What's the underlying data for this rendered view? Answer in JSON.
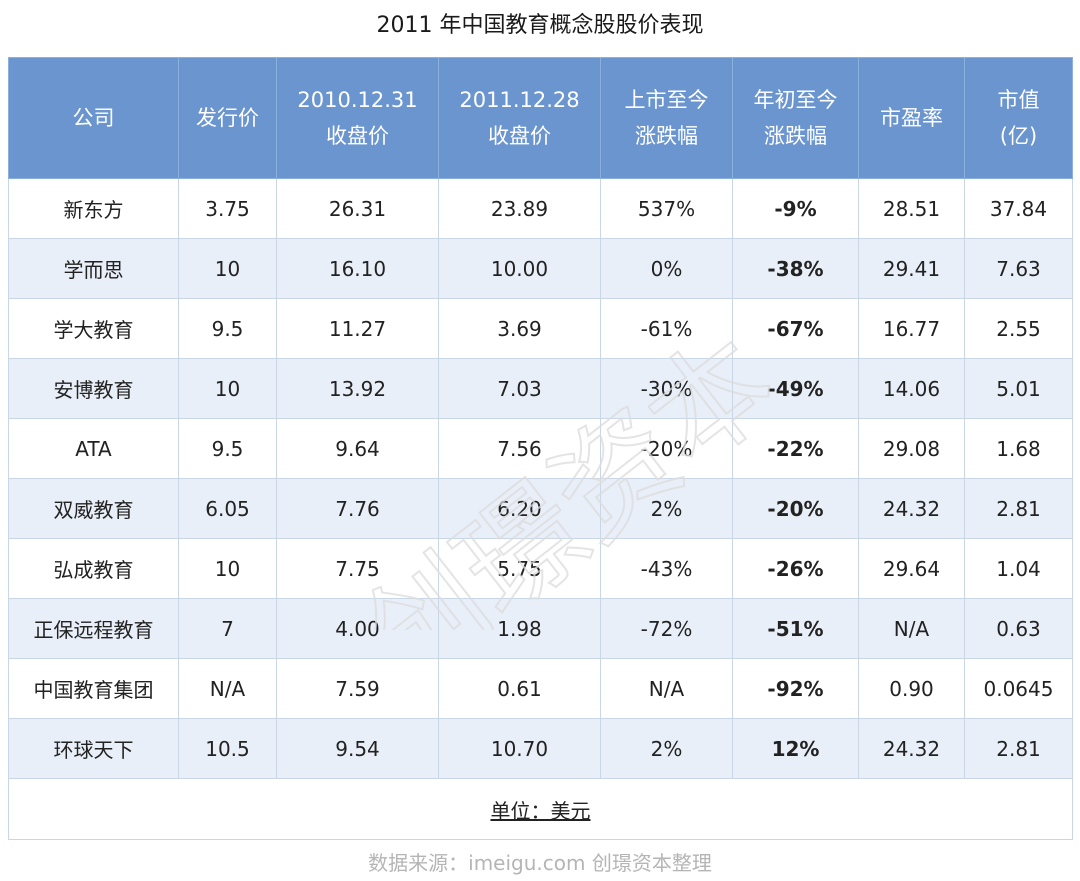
{
  "title": "2011 年中国教育概念股股价表现",
  "table": {
    "headers": [
      [
        "公司"
      ],
      [
        "发行价"
      ],
      [
        "2010.12.31",
        "收盘价"
      ],
      [
        "2011.12.28",
        "收盘价"
      ],
      [
        "上市至今",
        "涨跌幅"
      ],
      [
        "年初至今",
        "涨跌幅"
      ],
      [
        "市盈率"
      ],
      [
        "市值",
        "(亿)"
      ]
    ],
    "rows": [
      [
        "新东方",
        "3.75",
        "26.31",
        "23.89",
        "537%",
        "-9%",
        "28.51",
        "37.84"
      ],
      [
        "学而思",
        "10",
        "16.10",
        "10.00",
        "0%",
        "-38%",
        "29.41",
        "7.63"
      ],
      [
        "学大教育",
        "9.5",
        "11.27",
        "3.69",
        "-61%",
        "-67%",
        "16.77",
        "2.55"
      ],
      [
        "安博教育",
        "10",
        "13.92",
        "7.03",
        "-30%",
        "-49%",
        "14.06",
        "5.01"
      ],
      [
        "ATA",
        "9.5",
        "9.64",
        "7.56",
        "-20%",
        "-22%",
        "29.08",
        "1.68"
      ],
      [
        "双威教育",
        "6.05",
        "7.76",
        "6.20",
        "2%",
        "-20%",
        "24.32",
        "2.81"
      ],
      [
        "弘成教育",
        "10",
        "7.75",
        "5.75",
        "-43%",
        "-26%",
        "29.64",
        "1.04"
      ],
      [
        "正保远程教育",
        "7",
        "4.00",
        "1.98",
        "-72%",
        "-51%",
        "N/A",
        "0.63"
      ],
      [
        "中国教育集团",
        "N/A",
        "7.59",
        "0.61",
        "N/A",
        "-92%",
        "0.90",
        "0.0645"
      ],
      [
        "环球天下",
        "10.5",
        "9.54",
        "10.70",
        "2%",
        "12%",
        "24.32",
        "2.81"
      ]
    ],
    "unit_note": "单位：美元"
  },
  "source": "数据来源：imeigu.com   创璟资本整理",
  "watermark": "创璟资本",
  "colors": {
    "header_bg": "#6b95cf",
    "row_alt_bg": "#e9eff8",
    "border": "#c9d6e6"
  }
}
